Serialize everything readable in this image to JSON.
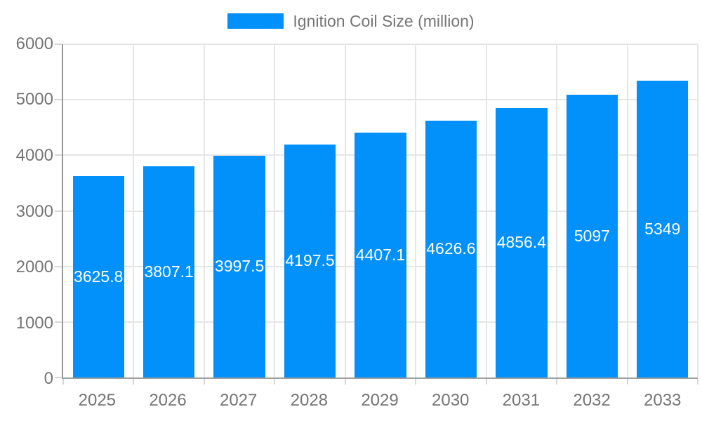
{
  "chart_data": {
    "type": "bar",
    "title": "",
    "legend": "Ignition Coil Size (million)",
    "legend_position": "top",
    "categories": [
      "2025",
      "2026",
      "2027",
      "2028",
      "2029",
      "2030",
      "2031",
      "2032",
      "2033"
    ],
    "series": [
      {
        "name": "Ignition Coil Size (million)",
        "values": [
          3625.8,
          3807.1,
          3997.5,
          4197.5,
          4407.1,
          4626.6,
          4856.4,
          5097,
          5349
        ],
        "value_labels": [
          "3625.8",
          "3807.1",
          "3997.5",
          "4197.5",
          "4407.1",
          "4626.6",
          "4856.4",
          "5097",
          "5349"
        ]
      }
    ],
    "xlabel": "",
    "ylabel": "",
    "ylim": [
      0,
      6000
    ],
    "y_ticks": [
      0,
      1000,
      2000,
      3000,
      4000,
      5000,
      6000
    ],
    "grid": true,
    "value_labels_position": "center-of-bar",
    "colors": {
      "bar": "#0290FA",
      "value_label_text": "#FFFFFF",
      "axis_text": "#757575",
      "gridline": "#E6E6E6",
      "axis_line": "#999999",
      "tick": "#D6D6D6",
      "background": "#FFFFFF"
    }
  }
}
